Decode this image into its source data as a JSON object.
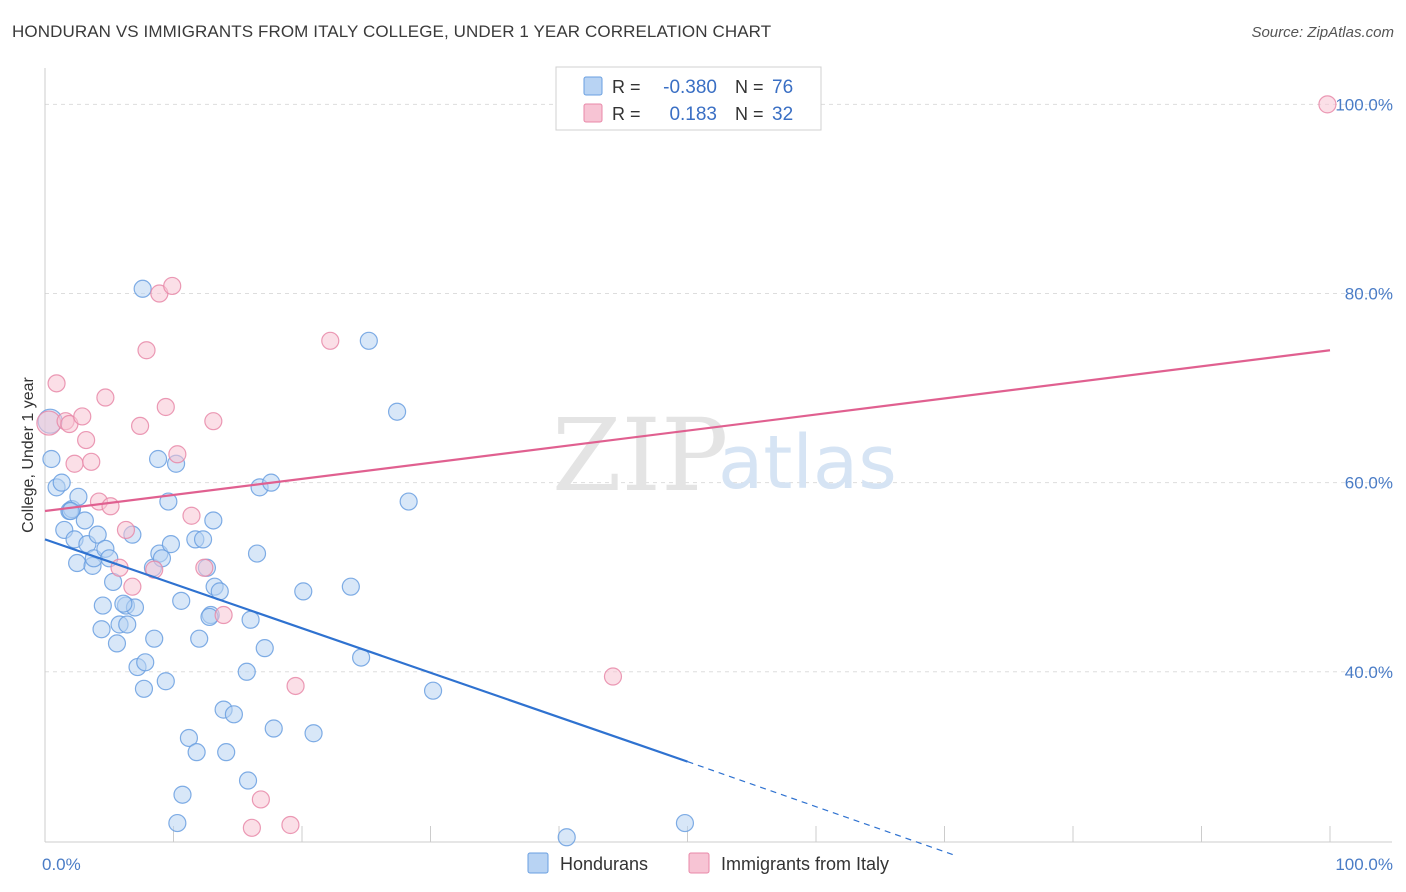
{
  "title": "HONDURAN VS IMMIGRANTS FROM ITALY COLLEGE, UNDER 1 YEAR CORRELATION CHART",
  "source": "Source: ZipAtlas.com",
  "watermark": {
    "part1": "ZIP",
    "part2": "atlas"
  },
  "colors": {
    "blue": "#6a9fe0",
    "blue_fill": "#b8d3f3",
    "blue_line": "#2f72d0",
    "pink": "#e888a8",
    "pink_fill": "#f7c4d4",
    "pink_line": "#e06090",
    "grid": "#dddddd",
    "tick_label": "#4a7cc6"
  },
  "legend_top": {
    "rows": [
      {
        "r_label": "R =",
        "r_value": "-0.380",
        "n_label": "N =",
        "n_value": "76"
      },
      {
        "r_label": "R =",
        "r_value": "0.183",
        "n_label": "N =",
        "n_value": "32"
      }
    ]
  },
  "legend_bottom": {
    "items": [
      "Hondurans",
      "Immigrants from Italy"
    ]
  },
  "chart_data": {
    "type": "scatter",
    "xlabel": "",
    "ylabel": "College, Under 1 year",
    "xlim": [
      0,
      100
    ],
    "ylim": [
      22,
      103
    ],
    "x_tick_labels": [
      "0.0%",
      "100.0%"
    ],
    "y_ticks": [
      40,
      60,
      80,
      100
    ],
    "y_tick_labels": [
      "40.0%",
      "60.0%",
      "80.0%",
      "100.0%"
    ],
    "grid": true,
    "legend_position": "top-center",
    "series": [
      {
        "name": "Hondurans",
        "r": -0.38,
        "n": 76,
        "trend": {
          "x0": 0,
          "y0": 54.0,
          "x1": 50,
          "y1": 30.5,
          "dashed_to_x": 71,
          "dashed_to_y": 20.5
        },
        "points": [
          [
            0.4,
            66.5
          ],
          [
            0.5,
            62.5
          ],
          [
            0.9,
            59.5
          ],
          [
            1.3,
            60.0
          ],
          [
            1.5,
            55.0
          ],
          [
            1.9,
            57.0
          ],
          [
            2.1,
            57.2
          ],
          [
            2.3,
            54.0
          ],
          [
            2.5,
            51.5
          ],
          [
            2.6,
            58.5
          ],
          [
            3.1,
            56.0
          ],
          [
            3.3,
            53.5
          ],
          [
            3.7,
            51.2
          ],
          [
            3.8,
            52.0
          ],
          [
            4.1,
            54.5
          ],
          [
            4.5,
            47.0
          ],
          [
            4.4,
            44.5
          ],
          [
            4.7,
            53.0
          ],
          [
            5.0,
            52.0
          ],
          [
            5.3,
            49.5
          ],
          [
            5.6,
            43.0
          ],
          [
            5.8,
            45.0
          ],
          [
            6.3,
            47.0
          ],
          [
            6.4,
            45.0
          ],
          [
            6.8,
            54.5
          ],
          [
            7.0,
            46.8
          ],
          [
            7.2,
            40.5
          ],
          [
            7.7,
            38.2
          ],
          [
            7.8,
            41.0
          ],
          [
            7.6,
            80.5
          ],
          [
            8.4,
            51.0
          ],
          [
            8.5,
            43.5
          ],
          [
            8.8,
            62.5
          ],
          [
            8.9,
            52.5
          ],
          [
            9.4,
            39.0
          ],
          [
            9.6,
            58.0
          ],
          [
            9.8,
            53.5
          ],
          [
            10.2,
            62.0
          ],
          [
            10.3,
            24.0
          ],
          [
            10.6,
            47.5
          ],
          [
            10.7,
            27.0
          ],
          [
            11.2,
            33.0
          ],
          [
            11.7,
            54.0
          ],
          [
            11.8,
            31.5
          ],
          [
            12.0,
            43.5
          ],
          [
            12.3,
            54.0
          ],
          [
            12.6,
            51.0
          ],
          [
            12.9,
            46.0
          ],
          [
            13.1,
            56.0
          ],
          [
            13.2,
            49.0
          ],
          [
            13.6,
            48.5
          ],
          [
            13.9,
            36.0
          ],
          [
            14.1,
            31.5
          ],
          [
            14.7,
            35.5
          ],
          [
            15.8,
            28.5
          ],
          [
            15.7,
            40.0
          ],
          [
            16.0,
            45.5
          ],
          [
            16.5,
            52.5
          ],
          [
            16.7,
            59.5
          ],
          [
            17.1,
            42.5
          ],
          [
            17.6,
            60.0
          ],
          [
            17.8,
            34.0
          ],
          [
            20.1,
            48.5
          ],
          [
            20.9,
            33.5
          ],
          [
            23.8,
            49.0
          ],
          [
            24.6,
            41.5
          ],
          [
            25.2,
            75.0
          ],
          [
            27.4,
            67.5
          ],
          [
            28.3,
            58.0
          ],
          [
            30.2,
            38.0
          ],
          [
            40.6,
            22.5
          ],
          [
            49.8,
            24.0
          ],
          [
            2.0,
            57.0
          ],
          [
            12.8,
            45.8
          ],
          [
            6.1,
            47.2
          ],
          [
            9.1,
            52.0
          ]
        ]
      },
      {
        "name": "Immigrants from Italy",
        "r": 0.183,
        "n": 32,
        "trend": {
          "x0": 0,
          "y0": 57.0,
          "x1": 100,
          "y1": 74.0
        },
        "points": [
          [
            0.3,
            66.3
          ],
          [
            0.9,
            70.5
          ],
          [
            1.6,
            66.5
          ],
          [
            1.9,
            66.2
          ],
          [
            2.3,
            62.0
          ],
          [
            2.9,
            67.0
          ],
          [
            3.2,
            64.5
          ],
          [
            3.6,
            62.2
          ],
          [
            4.2,
            58.0
          ],
          [
            4.7,
            69.0
          ],
          [
            5.1,
            57.5
          ],
          [
            5.8,
            51.0
          ],
          [
            6.3,
            55.0
          ],
          [
            6.8,
            49.0
          ],
          [
            7.4,
            66.0
          ],
          [
            7.9,
            74.0
          ],
          [
            8.5,
            50.8
          ],
          [
            8.9,
            80.0
          ],
          [
            9.4,
            68.0
          ],
          [
            9.9,
            80.8
          ],
          [
            10.3,
            63.0
          ],
          [
            11.4,
            56.5
          ],
          [
            12.4,
            51.0
          ],
          [
            13.1,
            66.5
          ],
          [
            13.9,
            46.0
          ],
          [
            16.1,
            23.5
          ],
          [
            16.8,
            26.5
          ],
          [
            19.1,
            23.8
          ],
          [
            19.5,
            38.5
          ],
          [
            22.2,
            75.0
          ],
          [
            44.2,
            39.5
          ],
          [
            99.8,
            100.0
          ]
        ]
      }
    ]
  }
}
